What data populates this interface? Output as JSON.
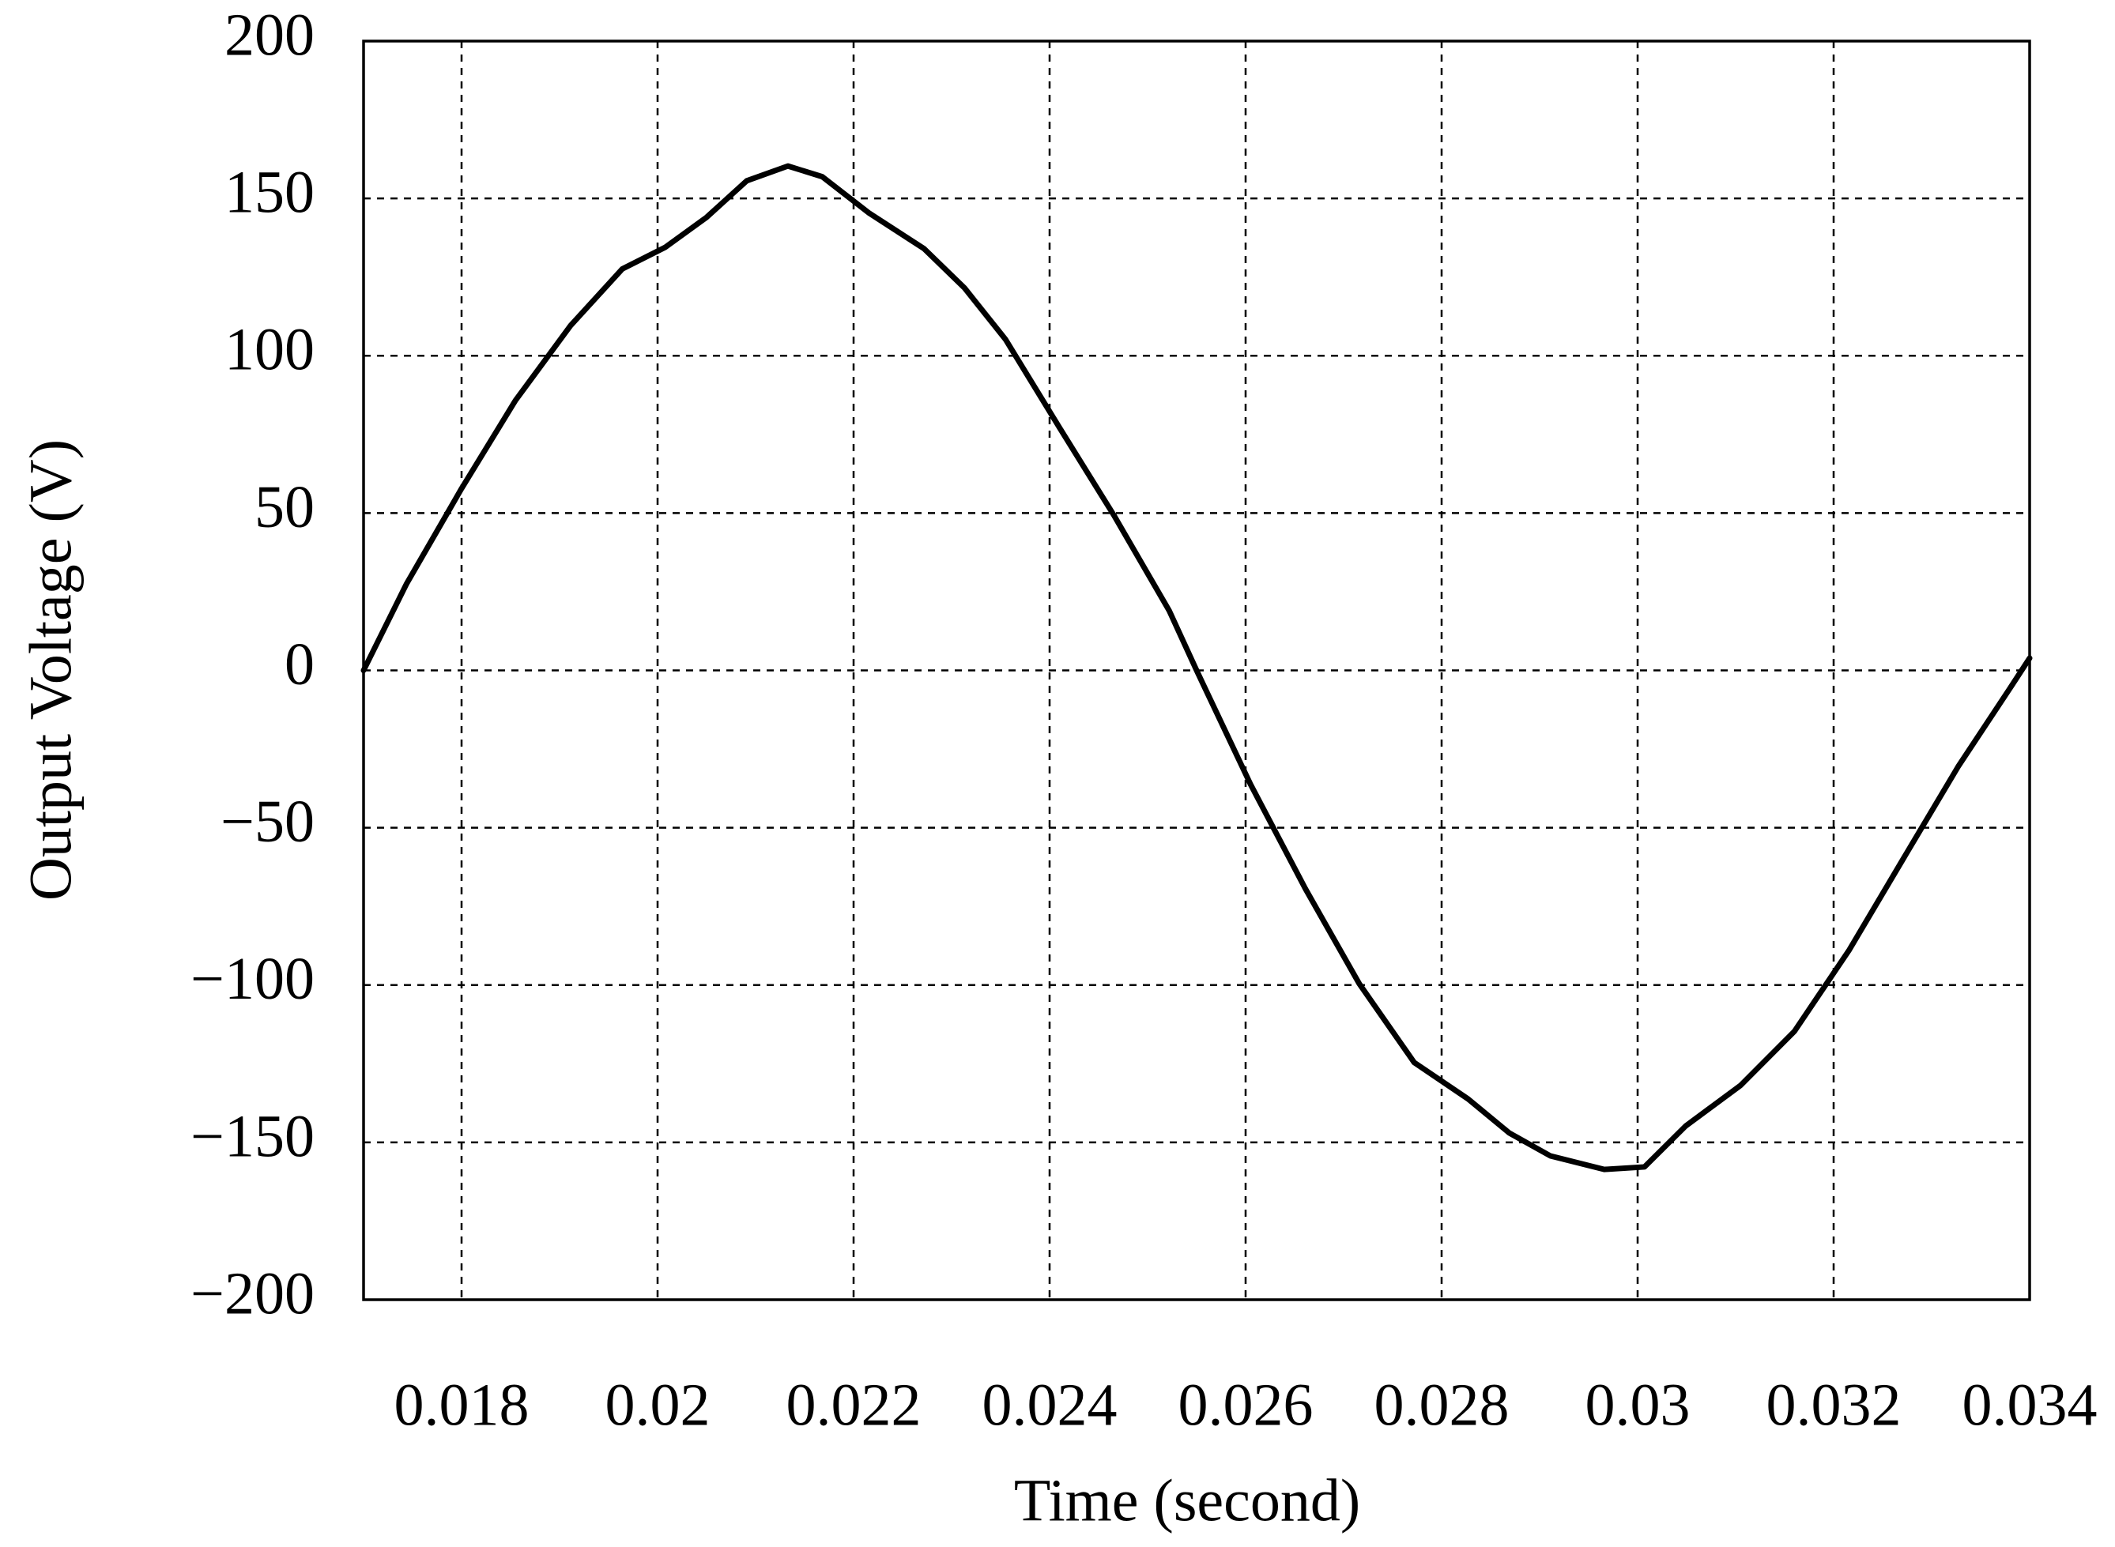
{
  "chart_data": {
    "type": "line",
    "x_label": "Time (second)",
    "y_label": "Output Voltage (V)",
    "x": [
      0.017,
      0.01744,
      0.018,
      0.01855,
      0.01911,
      0.01964,
      0.02008,
      0.0205,
      0.02091,
      0.02133,
      0.02168,
      0.02216,
      0.02272,
      0.02313,
      0.02355,
      0.0241,
      0.02466,
      0.02522,
      0.0255,
      0.02605,
      0.02661,
      0.02716,
      0.02772,
      0.02827,
      0.02869,
      0.02911,
      0.02966,
      0.03007,
      0.03049,
      0.03105,
      0.0316,
      0.03216,
      0.03271,
      0.03327,
      0.03382,
      0.034
    ],
    "series": [
      {
        "color": "#000000",
        "values": [
          0,
          27.6,
          57.8,
          85.8,
          109.5,
          127.6,
          134.5,
          144,
          155.6,
          160.3,
          156.9,
          145.3,
          134,
          121.6,
          105.2,
          77.2,
          49.1,
          19,
          0,
          -36.2,
          -69.4,
          -99.6,
          -124.6,
          -136.2,
          -147,
          -154.3,
          -158.6,
          -157.8,
          -144.8,
          -131.9,
          -114.7,
          -88.8,
          -59.9,
          -30.6,
          -4.7,
          3.9
        ]
      }
    ],
    "xlim": [
      0.017,
      0.034
    ],
    "xticks": [
      0.018,
      0.02,
      0.022,
      0.024,
      0.026,
      0.028,
      0.03,
      0.032,
      0.034
    ],
    "ylim": [
      -200,
      200
    ],
    "yticks": [
      {
        "value": -200,
        "label": "−200"
      },
      {
        "value": -150,
        "label": "−150"
      },
      {
        "value": -100,
        "label": "−100"
      },
      {
        "value": -50,
        "label": "−50"
      },
      0,
      50,
      100,
      150,
      200
    ],
    "grid": true
  }
}
